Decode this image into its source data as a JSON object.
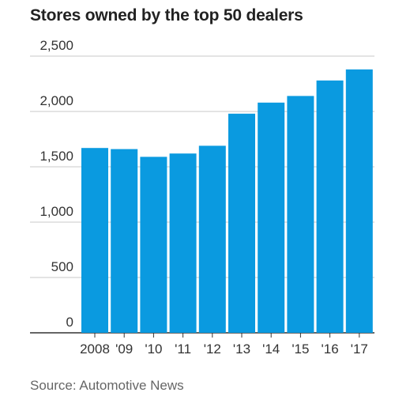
{
  "chart_data": {
    "type": "bar",
    "title": "Stores owned by the top 50 dealers",
    "categories": [
      "2008",
      "'09",
      "'10",
      "'11",
      "'12",
      "'13",
      "'14",
      "'15",
      "'16",
      "'17"
    ],
    "values": [
      1670,
      1660,
      1590,
      1620,
      1690,
      1980,
      2080,
      2140,
      2280,
      2380
    ],
    "ylim": [
      0,
      2500
    ],
    "yticks": [
      {
        "value": 0,
        "label": "0"
      },
      {
        "value": 500,
        "label": "500"
      },
      {
        "value": 1000,
        "label": "1,000"
      },
      {
        "value": 1500,
        "label": "1,500"
      },
      {
        "value": 2000,
        "label": "2,000"
      },
      {
        "value": 2500,
        "label": "2,500"
      }
    ],
    "xlabel": "",
    "ylabel": "",
    "grid": true,
    "bar_color": "#0a9ae0",
    "source": "Source: Automotive News"
  }
}
